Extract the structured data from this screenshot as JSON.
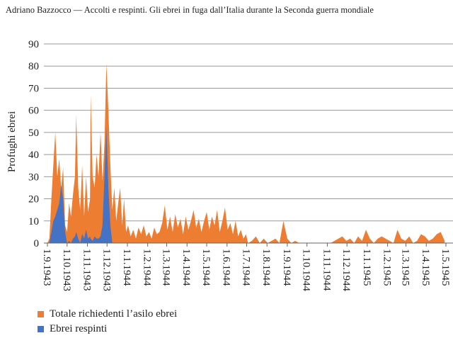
{
  "header": {
    "title": "Adriano Bazzocco — Accolti e respinti. Gli ebrei in fuga dall’Italia durante la Seconda guerra mondiale"
  },
  "chart_data": {
    "type": "area",
    "title": "",
    "xlabel": "",
    "ylabel": "Profughi ebrei",
    "ylim": [
      0,
      90
    ],
    "yticks": [
      "0",
      "10",
      "20",
      "30",
      "40",
      "50",
      "60",
      "70",
      "80",
      "90"
    ],
    "xticks": [
      "1.9.1943",
      "1.10.1943",
      "1.11.1943",
      "1.12.1943",
      "1.1.1944",
      "1.2.1944",
      "1.3.1944",
      "1.4.1944",
      "1.5.1944",
      "1.6.1944",
      "1.7.1944",
      "1.8.1944",
      "1.9.1944",
      "1.10.1944",
      "1.11.1944",
      "1.12.1944",
      "1.1.1945",
      "1.2.1945",
      "1.3.1945",
      "1.4.1945",
      "1.5.1945"
    ],
    "x_unit": "days since 1.9.1943",
    "grid": true,
    "legend_position": "bottom-left",
    "series": [
      {
        "name": "Totale richiedenti l’asilo ebrei",
        "color": "#ED7D31"
      },
      {
        "name": "Ebrei respinti",
        "color": "#4472C4"
      }
    ],
    "points": [
      [
        0,
        0,
        0
      ],
      [
        3,
        2,
        0
      ],
      [
        6,
        20,
        5
      ],
      [
        9,
        35,
        10
      ],
      [
        12,
        50,
        12
      ],
      [
        15,
        30,
        15
      ],
      [
        18,
        38,
        18
      ],
      [
        21,
        25,
        26
      ],
      [
        24,
        34,
        20
      ],
      [
        27,
        8,
        5
      ],
      [
        30,
        5,
        0
      ],
      [
        33,
        18,
        1
      ],
      [
        36,
        12,
        0
      ],
      [
        39,
        22,
        2
      ],
      [
        42,
        30,
        3
      ],
      [
        44,
        58,
        5
      ],
      [
        47,
        25,
        2
      ],
      [
        50,
        15,
        0
      ],
      [
        53,
        35,
        4
      ],
      [
        56,
        12,
        2
      ],
      [
        59,
        30,
        6
      ],
      [
        62,
        14,
        2
      ],
      [
        65,
        20,
        3
      ],
      [
        66,
        67,
        2
      ],
      [
        69,
        30,
        1
      ],
      [
        72,
        25,
        3
      ],
      [
        75,
        40,
        2
      ],
      [
        78,
        30,
        2
      ],
      [
        81,
        50,
        3
      ],
      [
        84,
        28,
        8
      ],
      [
        87,
        45,
        30
      ],
      [
        90,
        81,
        52
      ],
      [
        93,
        60,
        25
      ],
      [
        96,
        35,
        8
      ],
      [
        99,
        15,
        0
      ],
      [
        102,
        25,
        0
      ],
      [
        105,
        10,
        0
      ],
      [
        108,
        18,
        0
      ],
      [
        111,
        25,
        0
      ],
      [
        114,
        8,
        0
      ],
      [
        117,
        20,
        0
      ],
      [
        120,
        5,
        0
      ],
      [
        123,
        8,
        0
      ],
      [
        127,
        3,
        0
      ],
      [
        131,
        6,
        0
      ],
      [
        135,
        2,
        0
      ],
      [
        139,
        7,
        0
      ],
      [
        143,
        4,
        0
      ],
      [
        147,
        8,
        0
      ],
      [
        151,
        3,
        0
      ],
      [
        155,
        5,
        0
      ],
      [
        159,
        2,
        0
      ],
      [
        163,
        7,
        0
      ],
      [
        167,
        4,
        0
      ],
      [
        171,
        5,
        0
      ],
      [
        175,
        9,
        0
      ],
      [
        179,
        17,
        0
      ],
      [
        183,
        6,
        0
      ],
      [
        187,
        12,
        0
      ],
      [
        191,
        5,
        0
      ],
      [
        195,
        13,
        0
      ],
      [
        199,
        7,
        0
      ],
      [
        203,
        11,
        0
      ],
      [
        207,
        4,
        0
      ],
      [
        211,
        12,
        0
      ],
      [
        215,
        6,
        0
      ],
      [
        219,
        10,
        0
      ],
      [
        223,
        15,
        0
      ],
      [
        227,
        7,
        0
      ],
      [
        231,
        11,
        0
      ],
      [
        235,
        5,
        0
      ],
      [
        239,
        10,
        0
      ],
      [
        243,
        14,
        0
      ],
      [
        247,
        6,
        0
      ],
      [
        251,
        12,
        0
      ],
      [
        255,
        8,
        0
      ],
      [
        259,
        15,
        0
      ],
      [
        263,
        5,
        0
      ],
      [
        267,
        10,
        0
      ],
      [
        271,
        16,
        0
      ],
      [
        275,
        6,
        0
      ],
      [
        279,
        9,
        0
      ],
      [
        283,
        4,
        0
      ],
      [
        287,
        10,
        0
      ],
      [
        291,
        3,
        0
      ],
      [
        295,
        6,
        0
      ],
      [
        299,
        2,
        0
      ],
      [
        303,
        4,
        0
      ],
      [
        306,
        0,
        0
      ],
      [
        312,
        1,
        0
      ],
      [
        318,
        3,
        0
      ],
      [
        324,
        0,
        0
      ],
      [
        330,
        2,
        0
      ],
      [
        336,
        0,
        0
      ],
      [
        342,
        1,
        0
      ],
      [
        348,
        2,
        0
      ],
      [
        354,
        0,
        0
      ],
      [
        360,
        10,
        0
      ],
      [
        366,
        2,
        0
      ],
      [
        372,
        0,
        0
      ],
      [
        378,
        1,
        0
      ],
      [
        384,
        0,
        0
      ],
      [
        390,
        0,
        0
      ],
      [
        396,
        0,
        0
      ],
      [
        402,
        0,
        0
      ],
      [
        408,
        0,
        0
      ],
      [
        414,
        0,
        0
      ],
      [
        420,
        0,
        0
      ],
      [
        426,
        0,
        0
      ],
      [
        432,
        0,
        0
      ],
      [
        438,
        1,
        0
      ],
      [
        444,
        2,
        0
      ],
      [
        450,
        3,
        0
      ],
      [
        456,
        1,
        0
      ],
      [
        462,
        2,
        0
      ],
      [
        468,
        0,
        0
      ],
      [
        474,
        3,
        0
      ],
      [
        480,
        1,
        0
      ],
      [
        486,
        6,
        0
      ],
      [
        492,
        2,
        0
      ],
      [
        498,
        0,
        0
      ],
      [
        504,
        2,
        0
      ],
      [
        510,
        3,
        0
      ],
      [
        516,
        2,
        0
      ],
      [
        522,
        1,
        0
      ],
      [
        528,
        0,
        0
      ],
      [
        534,
        6,
        0
      ],
      [
        540,
        2,
        0
      ],
      [
        546,
        1,
        0
      ],
      [
        552,
        3,
        0
      ],
      [
        558,
        0,
        0
      ],
      [
        564,
        1,
        0
      ],
      [
        570,
        4,
        0
      ],
      [
        576,
        3,
        0
      ],
      [
        582,
        1,
        0
      ],
      [
        588,
        2,
        0
      ],
      [
        594,
        4,
        0
      ],
      [
        600,
        5,
        0
      ],
      [
        606,
        1,
        0
      ]
    ]
  }
}
